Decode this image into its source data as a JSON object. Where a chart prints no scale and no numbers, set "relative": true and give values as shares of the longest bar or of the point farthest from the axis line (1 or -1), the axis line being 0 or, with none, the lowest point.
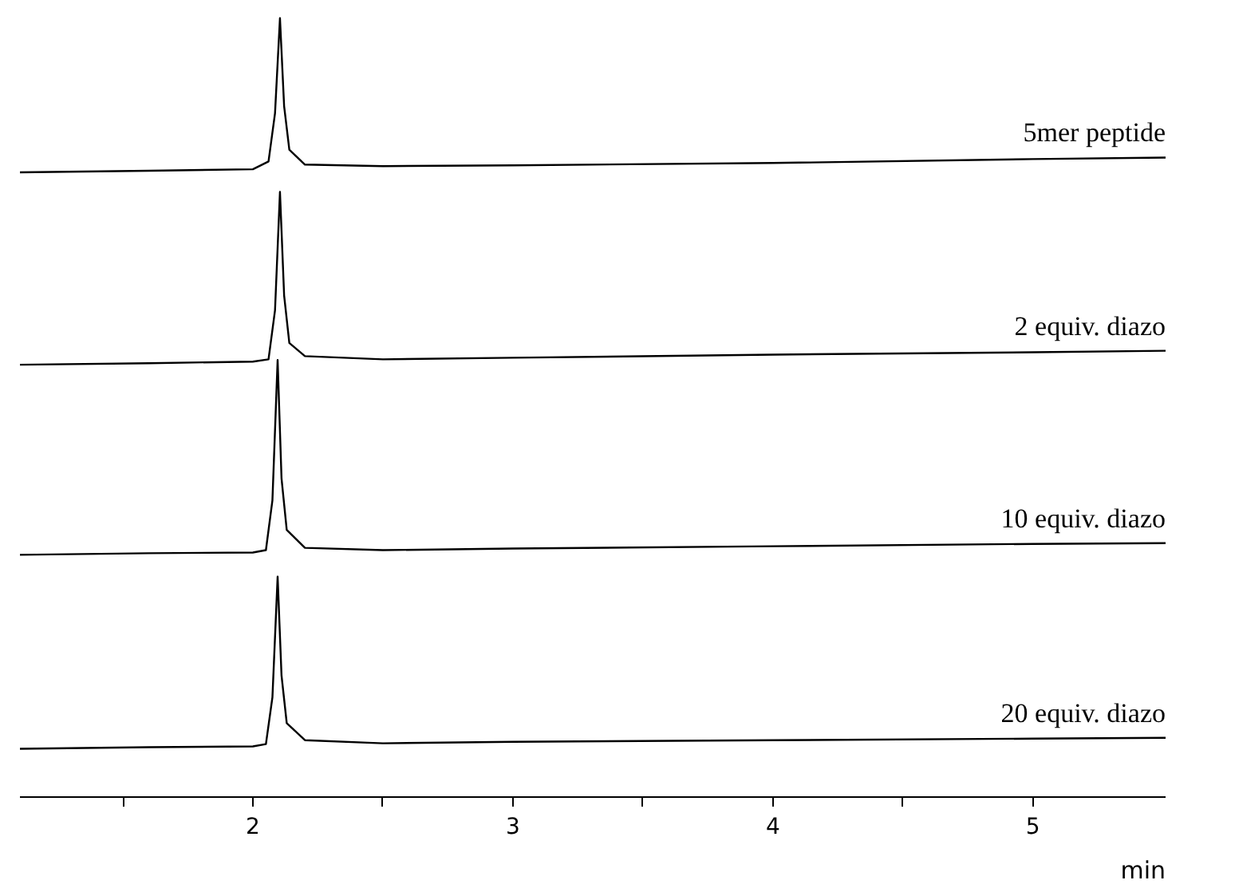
{
  "chart_data": {
    "type": "line",
    "relative": true,
    "xlabel": "min",
    "xlim": [
      1.104,
      5.51
    ],
    "xticks": [
      {
        "value": 1.5,
        "label": null
      },
      2,
      {
        "value": 2.5,
        "label": null
      },
      3,
      {
        "value": 3.5,
        "label": null
      },
      4,
      {
        "value": 4.5,
        "label": null
      },
      5
    ],
    "series": [
      {
        "name": "5mer peptide",
        "color": "#000000",
        "x": [
          1.104,
          1.6,
          2.0,
          2.06,
          2.085,
          2.104,
          2.12,
          2.14,
          2.2,
          2.5,
          3,
          4,
          5,
          5.51
        ],
        "values": [
          0.802,
          0.804,
          0.806,
          0.816,
          0.878,
          1.0,
          0.887,
          0.831,
          0.812,
          0.81,
          0.811,
          0.814,
          0.819,
          0.821
        ]
      },
      {
        "name": "2 equiv. diazo",
        "color": "#000000",
        "x": [
          1.104,
          1.6,
          2.0,
          2.06,
          2.085,
          2.104,
          2.12,
          2.14,
          2.2,
          2.5,
          3,
          4,
          5,
          5.51
        ],
        "values": [
          0.555,
          0.557,
          0.559,
          0.562,
          0.625,
          0.777,
          0.644,
          0.583,
          0.566,
          0.562,
          0.564,
          0.568,
          0.571,
          0.573
        ]
      },
      {
        "name": "10 equiv. diazo",
        "color": "#000000",
        "x": [
          1.104,
          1.6,
          2.0,
          2.05,
          2.075,
          2.095,
          2.11,
          2.13,
          2.2,
          2.5,
          3,
          4,
          5,
          5.51
        ],
        "values": [
          0.311,
          0.313,
          0.314,
          0.317,
          0.381,
          0.561,
          0.409,
          0.343,
          0.32,
          0.317,
          0.319,
          0.322,
          0.325,
          0.326
        ]
      },
      {
        "name": "20 equiv. diazo",
        "color": "#000000",
        "x": [
          1.104,
          1.6,
          2.0,
          2.05,
          2.075,
          2.095,
          2.11,
          2.13,
          2.2,
          2.5,
          3,
          4,
          5,
          5.51
        ],
        "values": [
          0.062,
          0.064,
          0.065,
          0.068,
          0.128,
          0.283,
          0.156,
          0.095,
          0.073,
          0.069,
          0.071,
          0.073,
          0.075,
          0.076
        ]
      }
    ]
  }
}
